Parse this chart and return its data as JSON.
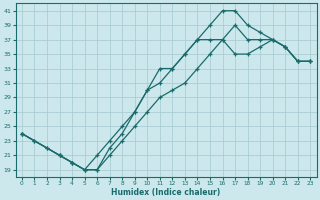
{
  "title": "",
  "xlabel": "Humidex (Indice chaleur)",
  "ylabel": "",
  "background_color": "#cce8ec",
  "line_color": "#1a6b6b",
  "grid_color": "#aacdd4",
  "curve1_x": [
    0,
    1,
    2,
    3,
    4,
    5,
    6,
    7,
    8,
    9,
    10,
    11,
    12,
    13,
    14,
    15,
    16,
    17,
    18,
    19,
    20,
    21,
    22,
    23
  ],
  "curve1_y": [
    24,
    23,
    22,
    21,
    20,
    19,
    19,
    22,
    24,
    27,
    30,
    33,
    33,
    35,
    37,
    39,
    41,
    41,
    39,
    38,
    37,
    36,
    34,
    34
  ],
  "curve2_x": [
    0,
    3,
    4,
    5,
    6,
    7,
    8,
    9,
    10,
    11,
    12,
    13,
    14,
    15,
    16,
    17,
    18,
    19,
    20,
    21,
    22,
    23
  ],
  "curve2_y": [
    24,
    21,
    20,
    19,
    21,
    23,
    25,
    27,
    30,
    31,
    33,
    35,
    37,
    37,
    37,
    39,
    37,
    37,
    37,
    36,
    34,
    34
  ],
  "curve3_x": [
    0,
    1,
    2,
    3,
    4,
    5,
    6,
    7,
    8,
    9,
    10,
    11,
    12,
    13,
    14,
    15,
    16,
    17,
    18,
    19,
    20,
    21,
    22,
    23
  ],
  "curve3_y": [
    24,
    23,
    22,
    21,
    20,
    19,
    19,
    21,
    23,
    25,
    27,
    29,
    30,
    31,
    33,
    35,
    37,
    35,
    35,
    36,
    37,
    36,
    34,
    34
  ],
  "xlim": [
    -0.5,
    23.5
  ],
  "ylim": [
    18,
    42
  ],
  "yticks": [
    19,
    21,
    23,
    25,
    27,
    29,
    31,
    33,
    35,
    37,
    39,
    41
  ],
  "xticks": [
    0,
    1,
    2,
    3,
    4,
    5,
    6,
    7,
    8,
    9,
    10,
    11,
    12,
    13,
    14,
    15,
    16,
    17,
    18,
    19,
    20,
    21,
    22,
    23
  ]
}
